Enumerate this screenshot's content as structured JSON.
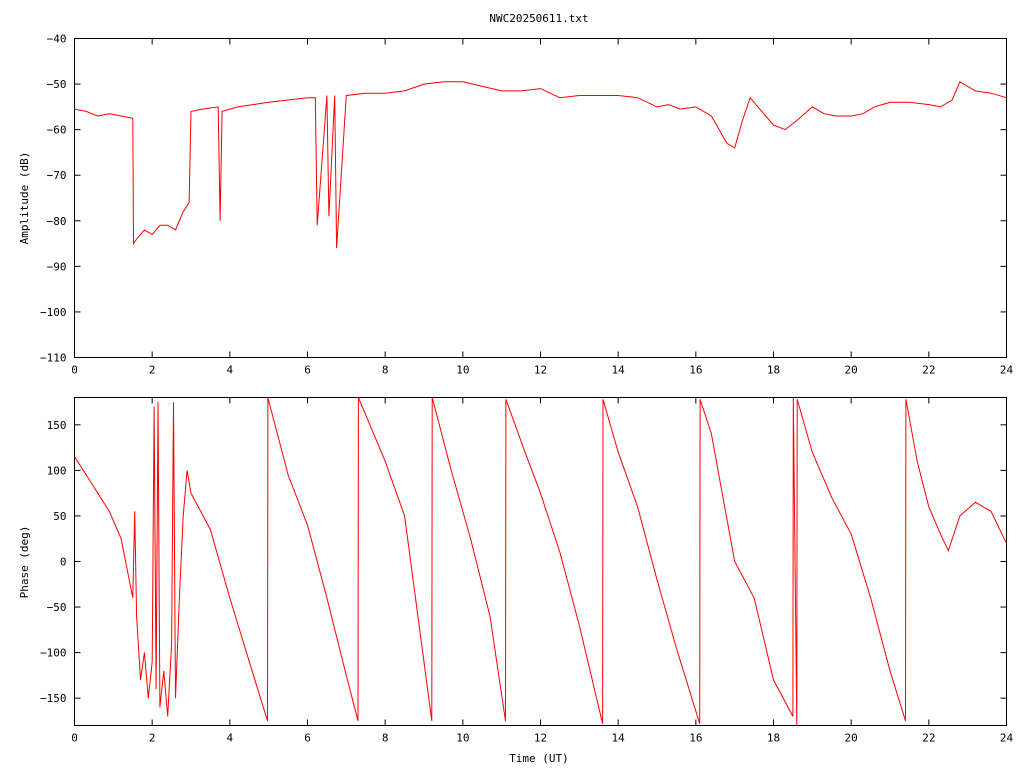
{
  "chart_data": [
    {
      "type": "line",
      "title": "NWC20250611.txt",
      "xlabel": "",
      "ylabel": "Amplitude (dB)",
      "xlim": [
        0,
        24
      ],
      "ylim": [
        -110,
        -40
      ],
      "xticks": [
        0,
        2,
        4,
        6,
        8,
        10,
        12,
        14,
        16,
        18,
        20,
        22,
        24
      ],
      "yticks": [
        -110,
        -100,
        -90,
        -80,
        -70,
        -60,
        -50,
        -40
      ],
      "grid": false,
      "color": "#ff0000",
      "series": [
        {
          "x": [
            0,
            0.3,
            0.6,
            0.9,
            1.2,
            1.5,
            1.52,
            1.6,
            1.8,
            2.0,
            2.2,
            2.4,
            2.6,
            2.8,
            2.95,
            3.0,
            3.3,
            3.7,
            3.75,
            3.8,
            4.2,
            4.6,
            5.0,
            5.5,
            6.0,
            6.2,
            6.25,
            6.5,
            6.55,
            6.7,
            6.75,
            7.0,
            7.5,
            8.0,
            8.5,
            9.0,
            9.5,
            10.0,
            10.5,
            11.0,
            11.5,
            12.0,
            12.5,
            13.0,
            13.5,
            14.0,
            14.5,
            15.0,
            15.3,
            15.6,
            16.0,
            16.4,
            16.6,
            16.8,
            17.0,
            17.2,
            17.4,
            17.6,
            17.8,
            18.0,
            18.3,
            18.6,
            19.0,
            19.3,
            19.6,
            20.0,
            20.3,
            20.6,
            21.0,
            21.5,
            22.0,
            22.3,
            22.6,
            22.8,
            23.2,
            23.6,
            24.0
          ],
          "values": [
            -55.5,
            -56,
            -57,
            -56.5,
            -57,
            -57.5,
            -85,
            -84,
            -82,
            -83,
            -81,
            -81,
            -82,
            -78,
            -76,
            -56,
            -55.5,
            -55,
            -80,
            -56,
            -55,
            -54.5,
            -54,
            -53.5,
            -53,
            -53,
            -81,
            -52.5,
            -79,
            -52.5,
            -86,
            -52.5,
            -52,
            -52,
            -51.5,
            -50,
            -49.5,
            -49.5,
            -50.5,
            -51.5,
            -51.5,
            -51,
            -53,
            -52.5,
            -52.5,
            -52.5,
            -53,
            -55,
            -54.5,
            -55.5,
            -55,
            -57,
            -60,
            -63,
            -64,
            -58,
            -53,
            -55,
            -57,
            -59,
            -60,
            -58,
            -55,
            -56.5,
            -57,
            -57,
            -56.5,
            -55,
            -54,
            -54,
            -54.5,
            -55,
            -53.5,
            -49.5,
            -51.5,
            -52,
            -53
          ]
        }
      ]
    },
    {
      "type": "line",
      "title": "",
      "xlabel": "Time (UT)",
      "ylabel": "Phase (deg)",
      "xlim": [
        0,
        24
      ],
      "ylim": [
        -180,
        180
      ],
      "xticks": [
        0,
        2,
        4,
        6,
        8,
        10,
        12,
        14,
        16,
        18,
        20,
        22,
        24
      ],
      "yticks": [
        -150,
        -100,
        -50,
        0,
        50,
        100,
        150
      ],
      "grid": false,
      "color": "#ff0000",
      "series": [
        {
          "x": [
            0,
            0.3,
            0.6,
            0.9,
            1.2,
            1.5,
            1.55,
            1.6,
            1.7,
            1.8,
            1.9,
            2.0,
            2.05,
            2.1,
            2.15,
            2.2,
            2.3,
            2.4,
            2.5,
            2.55,
            2.6,
            2.7,
            2.8,
            2.9,
            3.0,
            3.5,
            4.0,
            4.5,
            4.97,
            4.98,
            5.5,
            6.0,
            6.5,
            7.0,
            7.3,
            7.31,
            8.0,
            8.5,
            9.2,
            9.21,
            9.7,
            10.2,
            10.7,
            11.1,
            11.11,
            11.6,
            12.0,
            12.5,
            13.0,
            13.6,
            13.61,
            14.0,
            14.5,
            15.0,
            15.5,
            16.1,
            16.11,
            16.4,
            16.7,
            17.0,
            17.5,
            18.0,
            18.5,
            18.51,
            18.6,
            18.61,
            19.0,
            19.5,
            20.0,
            20.5,
            21.0,
            21.4,
            21.41,
            21.7,
            22.0,
            22.3,
            22.5,
            22.8,
            23.2,
            23.6,
            24.0
          ],
          "values": [
            115,
            95,
            75,
            55,
            25,
            -40,
            55,
            -60,
            -130,
            -100,
            -150,
            -110,
            170,
            -140,
            175,
            -160,
            -120,
            -170,
            -90,
            175,
            -150,
            -40,
            50,
            100,
            75,
            35,
            -40,
            -110,
            -175,
            180,
            95,
            40,
            -40,
            -125,
            -175,
            180,
            110,
            50,
            -175,
            180,
            100,
            25,
            -60,
            -175,
            178,
            120,
            75,
            10,
            -70,
            -178,
            178,
            120,
            60,
            -20,
            -95,
            -178,
            178,
            140,
            70,
            0,
            -40,
            -130,
            -170,
            180,
            -180,
            178,
            120,
            70,
            30,
            -40,
            -120,
            -175,
            178,
            110,
            60,
            30,
            12,
            50,
            65,
            55,
            20
          ]
        }
      ]
    }
  ]
}
